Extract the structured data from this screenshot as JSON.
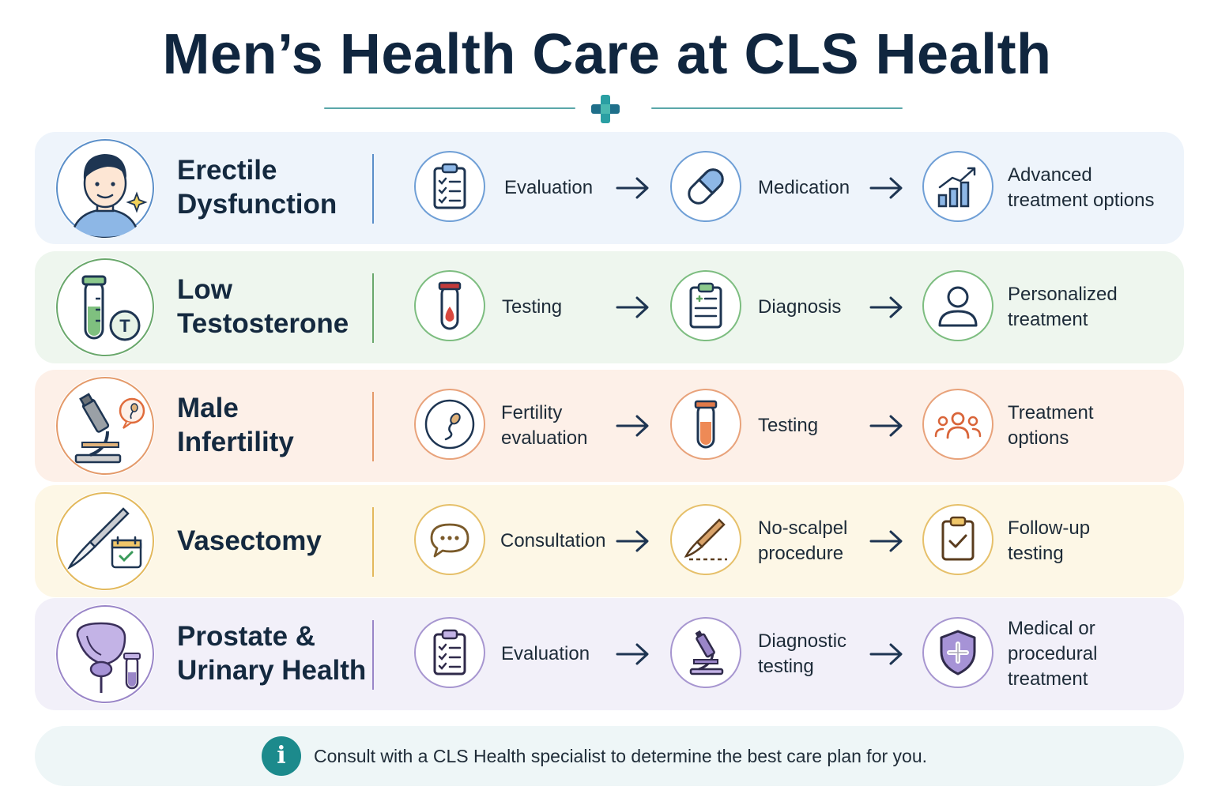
{
  "title": "Men’s Health Care at CLS Health",
  "rows": [
    {
      "condition": "Erectile\nDysfunction",
      "avatar_icon": "man-face-icon",
      "bg": "#eef4fb",
      "accent": "#5b8fc9",
      "steps": [
        {
          "label": "Evaluation",
          "icon": "clipboard-checklist-icon"
        },
        {
          "label": "Medication",
          "icon": "pill-icon"
        },
        {
          "label": "Advanced\ntreatment options",
          "icon": "bar-chart-growth-icon"
        }
      ]
    },
    {
      "condition": "Low\nTestosterone",
      "avatar_icon": "test-tube-testosterone-icon",
      "bg": "#eef6ee",
      "accent": "#6aa86c",
      "steps": [
        {
          "label": "Testing",
          "icon": "blood-tube-icon"
        },
        {
          "label": "Diagnosis",
          "icon": "clipboard-medical-icon"
        },
        {
          "label": "Personalized\ntreatment",
          "icon": "person-icon"
        }
      ]
    },
    {
      "condition": "Male\nInfertility",
      "avatar_icon": "microscope-sperm-icon",
      "bg": "#fdf0e8",
      "accent": "#e49a6a",
      "steps": [
        {
          "label": "Fertility\nevaluation",
          "icon": "sperm-icon"
        },
        {
          "label": "Testing",
          "icon": "sample-tube-icon"
        },
        {
          "label": "Treatment\noptions",
          "icon": "group-people-icon"
        }
      ]
    },
    {
      "condition": "Vasectomy",
      "avatar_icon": "scalpel-calendar-icon",
      "bg": "#fdf7e6",
      "accent": "#e3b95c",
      "steps": [
        {
          "label": "Consultation",
          "icon": "speech-bubble-icon"
        },
        {
          "label": "No-scalpel\nprocedure",
          "icon": "scalpel-icon"
        },
        {
          "label": "Follow-up\ntesting",
          "icon": "clipboard-check-icon"
        }
      ]
    },
    {
      "condition": "Prostate &\nUrinary Health",
      "avatar_icon": "bladder-prostate-icon",
      "bg": "#f2f0f9",
      "accent": "#9a86c8",
      "steps": [
        {
          "label": "Evaluation",
          "icon": "clipboard-checklist-icon"
        },
        {
          "label": "Diagnostic\ntesting",
          "icon": "microscope-icon"
        },
        {
          "label": "Medical or\nprocedural\ntreatment",
          "icon": "shield-cross-icon"
        }
      ]
    }
  ],
  "footer": {
    "icon": "info-icon",
    "icon_text": "i",
    "note": "Consult with a CLS Health specialist to determine the best care plan for you."
  },
  "colors": {
    "title": "#10263f",
    "teal": "#1c8a8c",
    "text": "#1d2b38"
  }
}
